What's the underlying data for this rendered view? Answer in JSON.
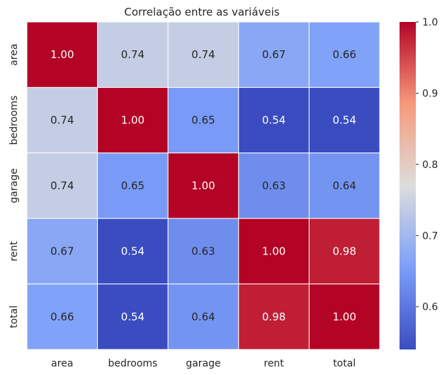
{
  "chart_data": {
    "type": "heatmap",
    "title": "Correlação entre as variáveis",
    "xlabel": "",
    "ylabel": "",
    "row_labels": [
      "area",
      "bedrooms",
      "garage",
      "rent",
      "total"
    ],
    "col_labels": [
      "area",
      "bedrooms",
      "garage",
      "rent",
      "total"
    ],
    "values": [
      [
        1.0,
        0.74,
        0.74,
        0.67,
        0.66
      ],
      [
        0.74,
        1.0,
        0.65,
        0.54,
        0.54
      ],
      [
        0.74,
        0.65,
        1.0,
        0.63,
        0.64
      ],
      [
        0.67,
        0.54,
        0.63,
        1.0,
        0.98
      ],
      [
        0.66,
        0.54,
        0.64,
        0.98,
        1.0
      ]
    ],
    "annotations": [
      [
        "1.00",
        "0.74",
        "0.74",
        "0.67",
        "0.66"
      ],
      [
        "0.74",
        "1.00",
        "0.65",
        "0.54",
        "0.54"
      ],
      [
        "0.74",
        "0.65",
        "1.00",
        "0.63",
        "0.64"
      ],
      [
        "0.67",
        "0.54",
        "0.63",
        "1.00",
        "0.98"
      ],
      [
        "0.66",
        "0.54",
        "0.64",
        "0.98",
        "1.00"
      ]
    ],
    "colormap": "coolwarm",
    "colorbar": {
      "vmin": 0.54,
      "vmax": 1.0,
      "ticks": [
        0.6,
        0.7,
        0.8,
        0.9,
        1.0
      ],
      "tick_labels": [
        "0.6",
        "0.7",
        "0.8",
        "0.9",
        "1.0"
      ]
    },
    "grid": false,
    "cell_border_color": "#ffffff"
  }
}
